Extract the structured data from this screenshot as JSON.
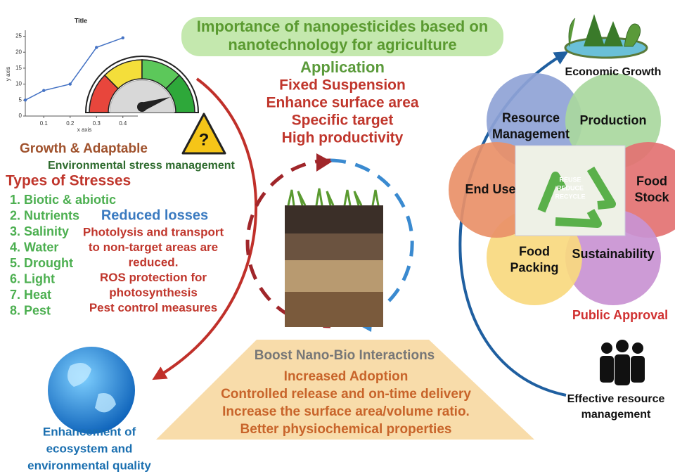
{
  "mini_chart": {
    "type": "line",
    "title": "Title",
    "x_label": "x axis",
    "y_label": "y axis",
    "x": [
      0.03,
      0.1,
      0.2,
      0.3,
      0.4
    ],
    "values": [
      5,
      8,
      10,
      21.5,
      24.5
    ],
    "xlim": [
      0.03,
      0.43
    ],
    "ylim": [
      0,
      26
    ],
    "xticks": [
      0.1,
      0.2,
      0.3,
      0.4
    ],
    "yticks": [
      0,
      5,
      10,
      15,
      20,
      25
    ],
    "color": "#4472c4"
  },
  "warning_icon": "?",
  "center_title": [
    "Importance of nanopesticides based on",
    "nanotechnology for agriculture"
  ],
  "application": {
    "heading": "Application",
    "items": [
      "Fixed Suspension",
      "Enhance surface area",
      "Specific target",
      "High productivity"
    ]
  },
  "growth": {
    "heading": "Growth & Adaptable",
    "subheading": "Environmental stress management"
  },
  "stresses": {
    "heading": "Types of Stresses",
    "items": [
      "1. Biotic & abiotic",
      "2. Nutrients",
      "3. Salinity",
      "4. Water",
      "5. Drought",
      "6. Light",
      "7. Heat",
      "8. Pest"
    ]
  },
  "reduced_losses": {
    "heading": "Reduced losses",
    "lines": [
      "Photolysis and transport",
      "to non-target areas are",
      "reduced.",
      "ROS protection for",
      "photosynthesis",
      "Pest control measures"
    ]
  },
  "nano_bio": {
    "heading": "Boost Nano-Bio Interactions",
    "lines": [
      "Increased Adoption",
      "Controlled release and on-time delivery",
      "Increase the surface area/volume ratio.",
      "Better physiochemical properties"
    ]
  },
  "ecosystem": [
    "Enhancement of",
    "ecosystem and",
    "environmental quality"
  ],
  "economic_growth": "Economic Growth",
  "petals": [
    [
      "Resource",
      "Management"
    ],
    [
      "Production"
    ],
    [
      "Food",
      "Stock"
    ],
    [
      "Sustainability"
    ],
    [
      "Food",
      "Packing"
    ],
    [
      "End User"
    ]
  ],
  "recycle_words": [
    "REUSE",
    "REDUCE",
    "RECYCLE"
  ],
  "public_approval": "Public Approval",
  "resource_management": [
    "Effective resource",
    "management"
  ]
}
